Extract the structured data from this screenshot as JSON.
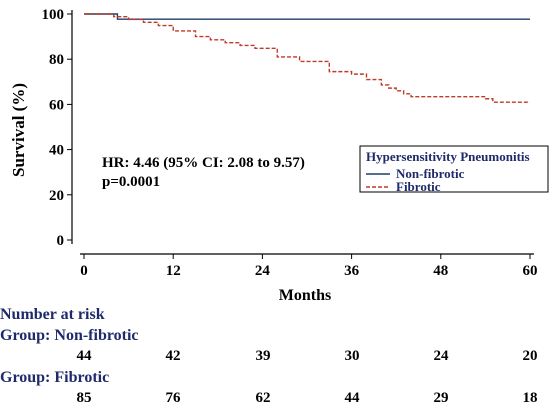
{
  "chart_data": {
    "type": "line",
    "title": "",
    "xlabel": "Months",
    "ylabel": "Survival (%)",
    "xlim": [
      0,
      60
    ],
    "ylim": [
      0,
      100
    ],
    "x_ticks": [
      0,
      12,
      24,
      36,
      48,
      60
    ],
    "y_ticks": [
      0,
      20,
      40,
      60,
      80,
      100
    ],
    "grid": false,
    "legend_title": "Hypersensitivity Pneumonitis",
    "legend_position": "right",
    "annotations": [
      "HR: 4.46 (95% CI: 2.08 to 9.57)",
      "p=0.0001"
    ],
    "series": [
      {
        "name": "Non-fibrotic",
        "color": "#1f3f66",
        "style": "solid",
        "step": true,
        "x": [
          0,
          4.5,
          60
        ],
        "y": [
          100,
          97.7,
          97.7
        ]
      },
      {
        "name": "Fibrotic",
        "color": "#c0392b",
        "style": "dashed",
        "step": true,
        "x": [
          0,
          4,
          6,
          8,
          10,
          12,
          15,
          17,
          19,
          21,
          23,
          26,
          29,
          33,
          36,
          38,
          40,
          41,
          42,
          43,
          44,
          54,
          55,
          60
        ],
        "y": [
          100,
          98.8,
          97.6,
          96.3,
          94.9,
          92.5,
          90,
          88.6,
          87.3,
          86.1,
          84.8,
          81,
          79,
          74.5,
          73.4,
          71,
          68.6,
          67.2,
          66,
          64.7,
          63.4,
          62.5,
          61,
          61
        ]
      }
    ]
  },
  "risk_table": {
    "title": "Number at risk",
    "groups": [
      {
        "label": "Group: Non-fibrotic",
        "values": [
          "44",
          "42",
          "39",
          "30",
          "24",
          "20"
        ]
      },
      {
        "label": "Group: Fibrotic",
        "values": [
          "85",
          "76",
          "62",
          "44",
          "29",
          "18"
        ]
      }
    ]
  }
}
